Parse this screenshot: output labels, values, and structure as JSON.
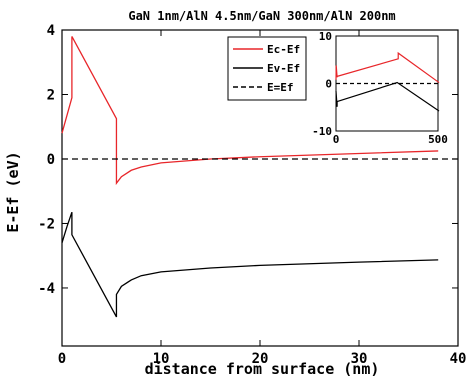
{
  "chart_data": [
    {
      "type": "line",
      "title": "GaN 1nm/AlN 4.5nm/GaN 300nm/AlN 200nm",
      "xlabel": "distance from surface (nm)",
      "ylabel": "E-Ef (eV)",
      "xlim": [
        0,
        40
      ],
      "ylim": [
        -5.8,
        4.0
      ],
      "xticks": [
        0,
        10,
        20,
        30,
        40
      ],
      "yticks": [
        4,
        2,
        0,
        -2,
        -4
      ],
      "grid": false,
      "legend_position": "top-right",
      "series": [
        {
          "name": "Ec-Ef",
          "color": "#e8262a",
          "style": "solid",
          "x": [
            0,
            1.0,
            1.0,
            5.5,
            5.5,
            6,
            7,
            8,
            10,
            15,
            20,
            30,
            38
          ],
          "y": [
            0.8,
            1.9,
            3.8,
            1.25,
            -0.75,
            -0.55,
            -0.35,
            -0.25,
            -0.12,
            0.0,
            0.07,
            0.17,
            0.25
          ]
        },
        {
          "name": "Ev-Ef",
          "color": "#000000",
          "style": "solid",
          "x": [
            0,
            0.5,
            1.0,
            1.0,
            5.5,
            5.5,
            6,
            7,
            8,
            10,
            15,
            20,
            30,
            38
          ],
          "y": [
            -2.6,
            -2.1,
            -1.65,
            -2.35,
            -4.9,
            -4.2,
            -3.95,
            -3.75,
            -3.62,
            -3.5,
            -3.38,
            -3.3,
            -3.2,
            -3.13
          ]
        },
        {
          "name": "E=Ef",
          "color": "#000000",
          "style": "dashed",
          "x": [
            0,
            40
          ],
          "y": [
            0,
            0
          ]
        }
      ]
    },
    {
      "type": "line",
      "inset": true,
      "xlim": [
        0,
        500
      ],
      "ylim": [
        -10,
        10
      ],
      "xticks": [
        0,
        500
      ],
      "yticks": [
        10,
        0,
        -10
      ],
      "series": [
        {
          "name": "Ec-Ef",
          "color": "#e8262a",
          "style": "solid",
          "x": [
            0,
            1,
            1,
            5.5,
            5.5,
            305,
            305,
            505
          ],
          "y": [
            0.8,
            3.8,
            3.8,
            1.3,
            1.5,
            5.2,
            6.4,
            0.2
          ]
        },
        {
          "name": "Ev-Ef",
          "color": "#000000",
          "style": "solid",
          "x": [
            0,
            5.5,
            5.5,
            300,
            505
          ],
          "y": [
            -1.6,
            -4.9,
            -3.8,
            0.2,
            -5.8
          ]
        },
        {
          "name": "E=Ef",
          "color": "#000000",
          "style": "dashed",
          "x": [
            0,
            500
          ],
          "y": [
            0,
            0
          ]
        }
      ]
    }
  ]
}
